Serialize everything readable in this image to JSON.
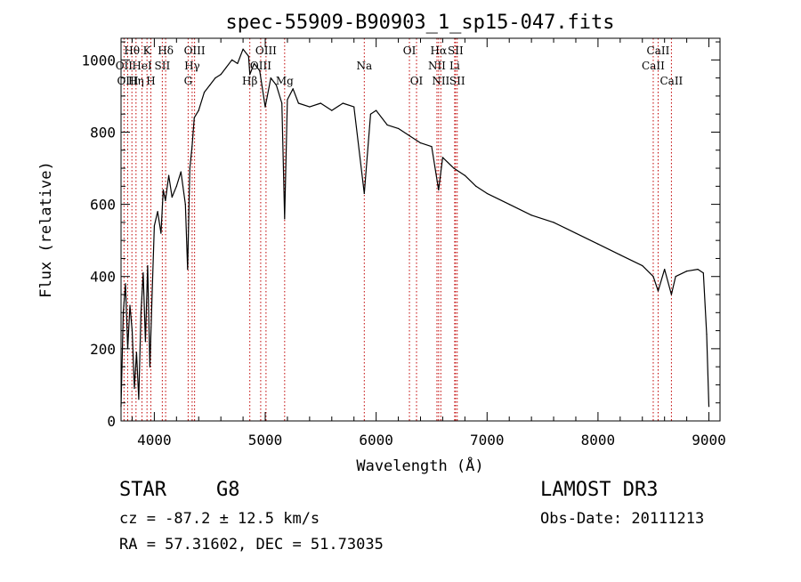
{
  "chart_data": {
    "type": "line",
    "title": "spec-55909-B90903_1_sp15-047.fits",
    "xlabel": "Wavelength (Å)",
    "ylabel": "Flux (relative)",
    "xlim": [
      3700,
      9100
    ],
    "ylim": [
      0,
      1060
    ],
    "x_ticks": [
      4000,
      5000,
      6000,
      7000,
      8000,
      9000
    ],
    "y_ticks": [
      0,
      200,
      400,
      600,
      800,
      1000
    ],
    "x_tick_labels": [
      "4000",
      "5000",
      "6000",
      "7000",
      "8000",
      "9000"
    ],
    "y_tick_labels": [
      "0",
      "200",
      "400",
      "600",
      "800",
      "1000"
    ],
    "grid": false,
    "series": [
      {
        "name": "flux",
        "color": "#000000",
        "x": [
          3700,
          3720,
          3740,
          3760,
          3780,
          3800,
          3820,
          3840,
          3860,
          3880,
          3900,
          3920,
          3940,
          3960,
          3980,
          4000,
          4030,
          4060,
          4080,
          4100,
          4130,
          4160,
          4200,
          4240,
          4280,
          4300,
          4320,
          4340,
          4360,
          4400,
          4450,
          4500,
          4550,
          4600,
          4650,
          4700,
          4750,
          4800,
          4850,
          4861,
          4900,
          4950,
          5000,
          5050,
          5100,
          5150,
          5175,
          5200,
          5250,
          5300,
          5400,
          5500,
          5600,
          5700,
          5800,
          5893,
          5950,
          6000,
          6100,
          6200,
          6300,
          6400,
          6500,
          6563,
          6600,
          6700,
          6800,
          6900,
          7000,
          7200,
          7400,
          7600,
          7800,
          8000,
          8200,
          8400,
          8498,
          8542,
          8600,
          8662,
          8700,
          8800,
          8900,
          8950,
          8980,
          9000
        ],
        "values": [
          40,
          300,
          380,
          200,
          320,
          250,
          90,
          190,
          60,
          300,
          410,
          220,
          430,
          150,
          350,
          540,
          580,
          520,
          640,
          610,
          680,
          620,
          650,
          690,
          600,
          420,
          700,
          760,
          840,
          860,
          910,
          930,
          950,
          960,
          980,
          1000,
          990,
          1030,
          1010,
          960,
          990,
          970,
          870,
          950,
          930,
          880,
          560,
          890,
          920,
          880,
          870,
          880,
          860,
          880,
          870,
          630,
          850,
          860,
          820,
          810,
          790,
          770,
          760,
          640,
          730,
          700,
          680,
          650,
          630,
          600,
          570,
          550,
          520,
          490,
          460,
          430,
          400,
          360,
          420,
          350,
          400,
          415,
          420,
          410,
          240,
          40
        ]
      }
    ],
    "line_labels": [
      {
        "label": "Hθ",
        "x": 3798,
        "row": 1
      },
      {
        "label": "K",
        "x": 3934,
        "row": 1
      },
      {
        "label": "Hδ",
        "x": 4102,
        "row": 1
      },
      {
        "label": "OII",
        "x": 3727,
        "row": 2
      },
      {
        "label": "HeI",
        "x": 3889,
        "row": 2
      },
      {
        "label": "SII",
        "x": 4072,
        "row": 2
      },
      {
        "label": "OIII",
        "x": 3760,
        "row": 3
      },
      {
        "label": "Hη",
        "x": 3835,
        "row": 3
      },
      {
        "label": "H",
        "x": 3969,
        "row": 3
      },
      {
        "label": "OIII",
        "x": 4363,
        "row": 1
      },
      {
        "label": "Hγ",
        "x": 4341,
        "row": 2
      },
      {
        "label": "G",
        "x": 4305,
        "row": 3
      },
      {
        "label": "OIII",
        "x": 5007,
        "row": 1
      },
      {
        "label": "OIII",
        "x": 4959,
        "row": 2
      },
      {
        "label": "Hβ",
        "x": 4861,
        "row": 3
      },
      {
        "label": "Mg",
        "x": 5175,
        "row": 3
      },
      {
        "label": "Na",
        "x": 5893,
        "row": 2
      },
      {
        "label": "OI",
        "x": 6300,
        "row": 1
      },
      {
        "label": "OI",
        "x": 6364,
        "row": 3
      },
      {
        "label": "Hα",
        "x": 6563,
        "row": 1
      },
      {
        "label": "SII",
        "x": 6716,
        "row": 1
      },
      {
        "label": "NII",
        "x": 6548,
        "row": 2
      },
      {
        "label": "Li",
        "x": 6708,
        "row": 2
      },
      {
        "label": "NII",
        "x": 6583,
        "row": 3
      },
      {
        "label": "SII",
        "x": 6731,
        "row": 3
      },
      {
        "label": "CaII",
        "x": 8542,
        "row": 1
      },
      {
        "label": "CaII",
        "x": 8498,
        "row": 2
      },
      {
        "label": "CaII",
        "x": 8662,
        "row": 3
      }
    ],
    "line_marker_color": "#c00000"
  },
  "info": {
    "object_class": "STAR",
    "subclass": "G8",
    "survey": "LAMOST DR3",
    "redshift_text": "cz = -87.2 ± 12.5 km/s",
    "obs_date": "Obs-Date: 20111213",
    "coords": "RA =  57.31602, DEC =  51.73035"
  }
}
